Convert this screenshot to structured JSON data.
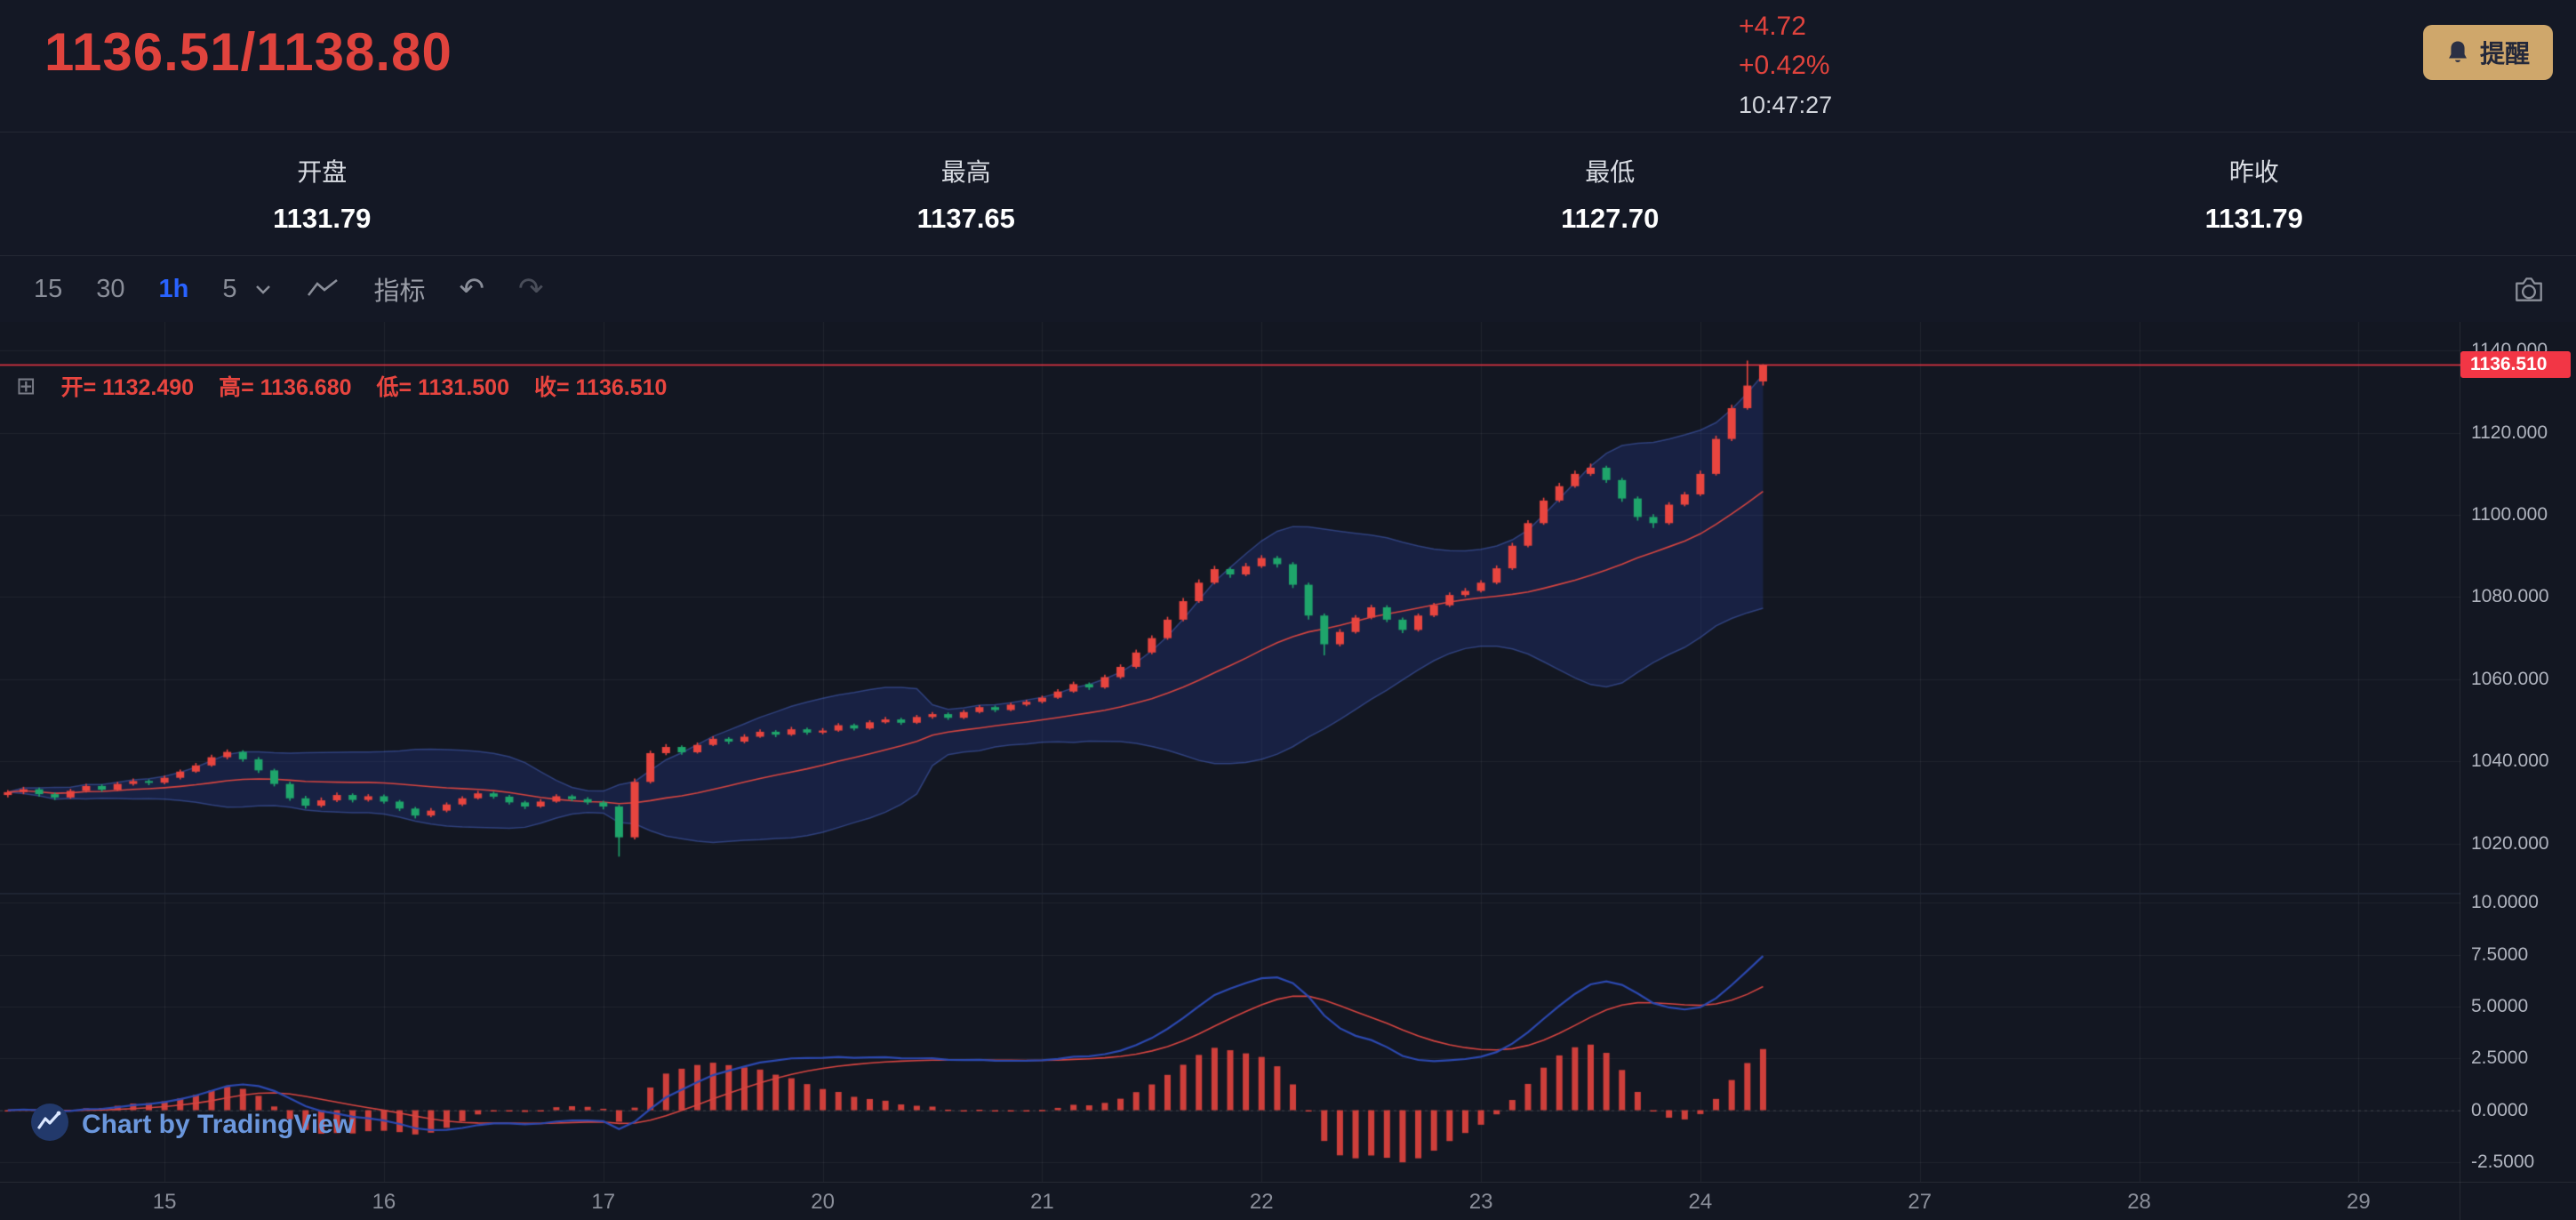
{
  "header": {
    "price_pair": "1136.51/1138.80",
    "change": "+4.72",
    "change_percent": "+0.42%",
    "time": "10:47:27",
    "alert_button": "提醒"
  },
  "stats": [
    {
      "key": "open",
      "label": "开盘",
      "value": "1131.79"
    },
    {
      "key": "high",
      "label": "最高",
      "value": "1137.65"
    },
    {
      "key": "low",
      "label": "最低",
      "value": "1127.70"
    },
    {
      "key": "prev-close",
      "label": "昨收",
      "value": "1131.79"
    }
  ],
  "toolbar": {
    "intervals": [
      {
        "label": "15",
        "active": false
      },
      {
        "label": "30",
        "active": false
      },
      {
        "label": "1h",
        "active": true
      },
      {
        "label": "5",
        "active": false
      }
    ],
    "indicators_label": "指标",
    "undo_symbol": "↶",
    "redo_symbol": "↷"
  },
  "legend": {
    "grid_symbol": "⊞",
    "items": [
      {
        "label": "开=",
        "value": "1132.490"
      },
      {
        "label": "高=",
        "value": "1136.680"
      },
      {
        "label": "低=",
        "value": "1131.500"
      },
      {
        "label": "收=",
        "value": "1136.510"
      }
    ]
  },
  "attribution": {
    "text": "Chart by TradingView"
  },
  "chart_data": {
    "type": "candlestick",
    "interval": "1h",
    "y_axis": {
      "ticks": [
        1140,
        1120,
        1100,
        1080,
        1060,
        1040,
        1020
      ],
      "range": [
        1008,
        1147
      ]
    },
    "current_price": 1136.51,
    "current_price_label": "1136.510",
    "x_axis": {
      "total_slots": 157,
      "labels": [
        {
          "t": "15",
          "slot": 10
        },
        {
          "t": "16",
          "slot": 24
        },
        {
          "t": "17",
          "slot": 38
        },
        {
          "t": "20",
          "slot": 52
        },
        {
          "t": "21",
          "slot": 66
        },
        {
          "t": "22",
          "slot": 80
        },
        {
          "t": "23",
          "slot": 94
        },
        {
          "t": "24",
          "slot": 108
        },
        {
          "t": "27",
          "slot": 122
        },
        {
          "t": "28",
          "slot": 136
        },
        {
          "t": "29",
          "slot": 150
        }
      ]
    },
    "overlays": [
      {
        "name": "BOLL",
        "period": 20,
        "mult": 2
      }
    ],
    "macd": {
      "fast": 12,
      "slow": 26,
      "signal": 9,
      "scale": 0.6,
      "ticks": [
        10,
        7.5,
        5,
        2.5,
        0,
        -2.5
      ],
      "range": [
        -3.45,
        10.4
      ]
    },
    "colors": {
      "up": "#e8453f",
      "down": "#1fa56b",
      "basis": "#d64541",
      "band_line": "rgba(80,110,215,0.45)",
      "band_fill": "rgba(45,75,185,0.22)",
      "price_line": "#f23645",
      "hist": "rgba(232,69,63,0.88)",
      "dif": "#2c49b0",
      "dea": "#d64541",
      "grid": "rgba(255,255,255,0.055)"
    },
    "candles": [
      [
        1031.8,
        1033.0,
        1031.2,
        1032.5
      ],
      [
        1032.5,
        1033.8,
        1032.0,
        1033.2
      ],
      [
        1033.2,
        1033.6,
        1031.4,
        1032.0
      ],
      [
        1032.0,
        1032.4,
        1030.6,
        1031.2
      ],
      [
        1031.2,
        1033.3,
        1030.9,
        1032.8
      ],
      [
        1032.8,
        1034.5,
        1032.4,
        1034.0
      ],
      [
        1034.0,
        1034.4,
        1032.6,
        1033.1
      ],
      [
        1033.1,
        1035.0,
        1032.8,
        1034.5
      ],
      [
        1034.5,
        1035.8,
        1034.1,
        1035.2
      ],
      [
        1035.2,
        1035.6,
        1034.2,
        1034.8
      ],
      [
        1034.8,
        1036.5,
        1034.4,
        1036.0
      ],
      [
        1036.0,
        1038.0,
        1035.6,
        1037.5
      ],
      [
        1037.5,
        1039.6,
        1037.2,
        1039.0
      ],
      [
        1039.0,
        1041.6,
        1038.7,
        1041.0
      ],
      [
        1041.0,
        1042.9,
        1040.5,
        1042.3
      ],
      [
        1042.3,
        1042.7,
        1039.9,
        1040.5
      ],
      [
        1040.5,
        1041.0,
        1037.2,
        1037.8
      ],
      [
        1037.8,
        1038.2,
        1033.9,
        1034.5
      ],
      [
        1034.5,
        1035.0,
        1030.4,
        1031.0
      ],
      [
        1031.0,
        1031.6,
        1028.5,
        1029.2
      ],
      [
        1029.2,
        1031.2,
        1028.8,
        1030.5
      ],
      [
        1030.5,
        1032.4,
        1030.1,
        1031.8
      ],
      [
        1031.8,
        1032.2,
        1030.0,
        1030.6
      ],
      [
        1030.6,
        1032.0,
        1030.2,
        1031.5
      ],
      [
        1031.5,
        1031.9,
        1029.7,
        1030.2
      ],
      [
        1030.2,
        1030.6,
        1027.9,
        1028.5
      ],
      [
        1028.5,
        1028.9,
        1026.1,
        1026.8
      ],
      [
        1026.8,
        1028.6,
        1026.4,
        1028.0
      ],
      [
        1028.0,
        1030.0,
        1027.6,
        1029.5
      ],
      [
        1029.5,
        1031.5,
        1029.1,
        1031.0
      ],
      [
        1031.0,
        1032.8,
        1030.7,
        1032.2
      ],
      [
        1032.2,
        1032.6,
        1030.9,
        1031.4
      ],
      [
        1031.4,
        1031.8,
        1029.5,
        1030.0
      ],
      [
        1030.0,
        1030.4,
        1028.4,
        1029.0
      ],
      [
        1029.0,
        1030.8,
        1028.7,
        1030.2
      ],
      [
        1030.2,
        1032.0,
        1029.9,
        1031.5
      ],
      [
        1031.5,
        1031.9,
        1030.3,
        1030.8
      ],
      [
        1030.8,
        1031.3,
        1029.5,
        1030.0
      ],
      [
        1030.0,
        1030.4,
        1028.3,
        1029.0
      ],
      [
        1029.0,
        1029.4,
        1016.8,
        1021.5
      ],
      [
        1021.5,
        1035.8,
        1021.0,
        1035.0
      ],
      [
        1035.0,
        1042.6,
        1034.6,
        1042.0
      ],
      [
        1042.0,
        1044.2,
        1041.5,
        1043.5
      ],
      [
        1043.5,
        1043.9,
        1041.6,
        1042.2
      ],
      [
        1042.2,
        1044.6,
        1041.9,
        1044.0
      ],
      [
        1044.0,
        1046.1,
        1043.7,
        1045.5
      ],
      [
        1045.5,
        1045.9,
        1044.2,
        1044.8
      ],
      [
        1044.8,
        1046.6,
        1044.4,
        1046.0
      ],
      [
        1046.0,
        1047.8,
        1045.7,
        1047.2
      ],
      [
        1047.2,
        1047.6,
        1045.9,
        1046.5
      ],
      [
        1046.5,
        1048.4,
        1046.2,
        1047.8
      ],
      [
        1047.8,
        1048.2,
        1046.5,
        1047.0
      ],
      [
        1047.0,
        1048.1,
        1046.6,
        1047.5
      ],
      [
        1047.5,
        1049.3,
        1047.2,
        1048.8
      ],
      [
        1048.8,
        1049.2,
        1047.5,
        1048.0
      ],
      [
        1048.0,
        1050.0,
        1047.7,
        1049.5
      ],
      [
        1049.5,
        1050.8,
        1049.2,
        1050.2
      ],
      [
        1050.2,
        1050.6,
        1048.9,
        1049.4
      ],
      [
        1049.4,
        1051.3,
        1049.1,
        1050.8
      ],
      [
        1050.8,
        1052.0,
        1050.4,
        1051.5
      ],
      [
        1051.5,
        1051.9,
        1050.1,
        1050.6
      ],
      [
        1050.6,
        1052.5,
        1050.3,
        1052.0
      ],
      [
        1052.0,
        1053.7,
        1051.7,
        1053.2
      ],
      [
        1053.2,
        1053.6,
        1052.0,
        1052.5
      ],
      [
        1052.5,
        1054.3,
        1052.2,
        1053.8
      ],
      [
        1053.8,
        1055.0,
        1053.4,
        1054.5
      ],
      [
        1054.5,
        1056.0,
        1054.1,
        1055.5
      ],
      [
        1055.5,
        1057.6,
        1055.2,
        1057.0
      ],
      [
        1057.0,
        1059.4,
        1056.7,
        1058.8
      ],
      [
        1058.8,
        1059.2,
        1057.4,
        1058.0
      ],
      [
        1058.0,
        1061.1,
        1057.7,
        1060.5
      ],
      [
        1060.5,
        1063.6,
        1060.1,
        1063.0
      ],
      [
        1063.0,
        1067.2,
        1062.6,
        1066.5
      ],
      [
        1066.5,
        1070.7,
        1066.1,
        1070.0
      ],
      [
        1070.0,
        1075.2,
        1069.6,
        1074.5
      ],
      [
        1074.5,
        1079.8,
        1074.1,
        1079.0
      ],
      [
        1079.0,
        1084.3,
        1078.6,
        1083.5
      ],
      [
        1083.5,
        1087.6,
        1083.1,
        1086.8
      ],
      [
        1086.8,
        1087.2,
        1084.7,
        1085.5
      ],
      [
        1085.5,
        1088.3,
        1085.1,
        1087.5
      ],
      [
        1087.5,
        1090.2,
        1087.1,
        1089.5
      ],
      [
        1089.5,
        1090.0,
        1087.2,
        1088.0
      ],
      [
        1088.0,
        1088.5,
        1082.2,
        1083.0
      ],
      [
        1083.0,
        1083.5,
        1074.5,
        1075.5
      ],
      [
        1075.5,
        1076.0,
        1065.8,
        1068.5
      ],
      [
        1068.5,
        1072.2,
        1068.0,
        1071.5
      ],
      [
        1071.5,
        1075.6,
        1071.1,
        1075.0
      ],
      [
        1075.0,
        1078.1,
        1074.6,
        1077.5
      ],
      [
        1077.5,
        1078.0,
        1073.9,
        1074.5
      ],
      [
        1074.5,
        1075.0,
        1071.2,
        1072.0
      ],
      [
        1072.0,
        1076.0,
        1071.6,
        1075.5
      ],
      [
        1075.5,
        1078.6,
        1075.1,
        1078.0
      ],
      [
        1078.0,
        1081.1,
        1077.6,
        1080.5
      ],
      [
        1080.5,
        1082.2,
        1080.0,
        1081.5
      ],
      [
        1081.5,
        1084.1,
        1081.1,
        1083.5
      ],
      [
        1083.5,
        1087.7,
        1083.1,
        1087.0
      ],
      [
        1087.0,
        1093.2,
        1086.6,
        1092.5
      ],
      [
        1092.5,
        1098.7,
        1092.1,
        1098.0
      ],
      [
        1098.0,
        1104.2,
        1097.6,
        1103.5
      ],
      [
        1103.5,
        1107.8,
        1103.1,
        1107.0
      ],
      [
        1107.0,
        1110.8,
        1106.6,
        1110.0
      ],
      [
        1110.0,
        1112.5,
        1109.5,
        1111.5
      ],
      [
        1111.5,
        1112.0,
        1107.8,
        1108.5
      ],
      [
        1108.5,
        1109.0,
        1103.2,
        1104.0
      ],
      [
        1104.0,
        1104.5,
        1098.6,
        1099.5
      ],
      [
        1099.5,
        1100.2,
        1096.8,
        1098.0
      ],
      [
        1098.0,
        1103.1,
        1097.6,
        1102.5
      ],
      [
        1102.5,
        1105.6,
        1102.1,
        1105.0
      ],
      [
        1105.0,
        1110.8,
        1104.6,
        1110.0
      ],
      [
        1110.0,
        1119.3,
        1109.6,
        1118.5
      ],
      [
        1118.5,
        1126.8,
        1118.0,
        1126.0
      ],
      [
        1126.0,
        1137.6,
        1125.6,
        1131.5
      ],
      [
        1132.5,
        1136.7,
        1131.5,
        1136.5
      ]
    ]
  }
}
